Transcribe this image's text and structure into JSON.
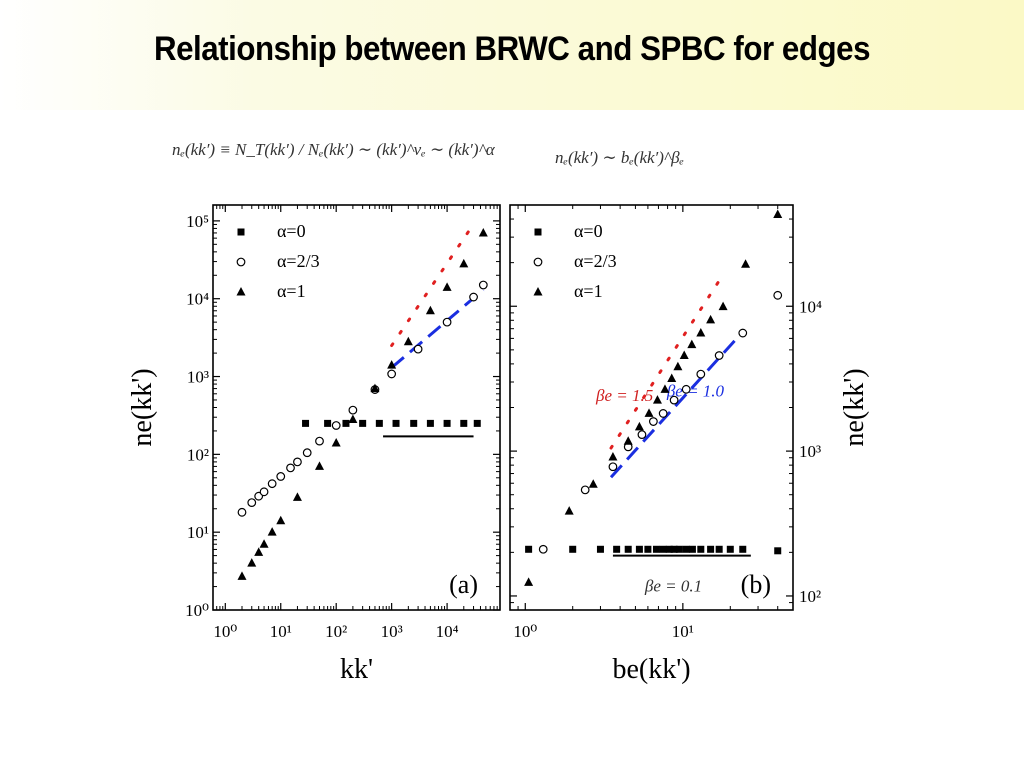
{
  "slide": {
    "title": "Relationship between BRWC and SPBC for edges",
    "formula_left": "nₑ(kk′) ≡ N_T(kk′) / Nₑ(kk′) ∼ (kk′)^νₑ ∼ (kk′)^α",
    "formula_right": "nₑ(kk′) ∼ bₑ(kk′)^βₑ"
  },
  "chart_data": [
    {
      "type": "scatter",
      "panel_label": "(a)",
      "xlabel": "kk'",
      "ylabel": "ne(kk')",
      "xscale": "log",
      "yscale": "log",
      "xlim": [
        0.6,
        90000
      ],
      "ylim": [
        1,
        160000
      ],
      "xticks": [
        1,
        10,
        100,
        1000,
        10000
      ],
      "xtick_labels": [
        "10⁰",
        "10¹",
        "10²",
        "10³",
        "10⁴"
      ],
      "yticks": [
        1,
        10,
        100,
        1000,
        10000,
        100000
      ],
      "ytick_labels": [
        "10⁰",
        "10¹",
        "10²",
        "10³",
        "10⁴",
        "10⁵"
      ],
      "legend": [
        "α=0",
        "α=2/3",
        "α=1"
      ],
      "legend_position": "top-left",
      "series": [
        {
          "name": "α=0",
          "marker": "square",
          "x": [
            28,
            70,
            150,
            300,
            600,
            1200,
            2500,
            5000,
            10000,
            20000,
            35000
          ],
          "y": [
            250,
            250,
            250,
            250,
            250,
            250,
            250,
            250,
            250,
            250,
            250
          ]
        },
        {
          "name": "α=2/3",
          "marker": "circle-open",
          "x": [
            2,
            3,
            4,
            5,
            7,
            10,
            15,
            20,
            30,
            50,
            100,
            200,
            500,
            1000,
            3000,
            10000,
            30000,
            45000
          ],
          "y": [
            18,
            24,
            29,
            33,
            42,
            52,
            67,
            80,
            105,
            148,
            235,
            370,
            680,
            1080,
            2250,
            5000,
            10500,
            15000
          ]
        },
        {
          "name": "α=1",
          "marker": "triangle",
          "x": [
            2,
            3,
            4,
            5,
            7,
            10,
            20,
            50,
            100,
            200,
            500,
            1000,
            2000,
            5000,
            10000,
            20000,
            45000
          ],
          "y": [
            2.7,
            4,
            5.5,
            7,
            10,
            14,
            28,
            70,
            140,
            280,
            700,
            1400,
            2800,
            7000,
            14000,
            28000,
            70000
          ]
        }
      ],
      "guides": [
        {
          "style": "red-dotted",
          "x": [
            1000,
            25000
          ],
          "y": [
            2500,
            75000
          ]
        },
        {
          "style": "blue-dashed",
          "x": [
            1000,
            45000
          ],
          "y": [
            1300,
            13000
          ]
        },
        {
          "style": "black-solid",
          "x": [
            700,
            30000
          ],
          "y": [
            170,
            170
          ]
        }
      ]
    },
    {
      "type": "scatter",
      "panel_label": "(b)",
      "xlabel": "be(kk')",
      "ylabel": "ne(kk')",
      "xscale": "log",
      "yscale": "log",
      "y_axis_side": "right",
      "xlim": [
        0.8,
        50
      ],
      "ylim": [
        80,
        50000
      ],
      "xticks": [
        1,
        10
      ],
      "xtick_labels": [
        "10⁰",
        "10¹"
      ],
      "yticks": [
        100,
        1000,
        10000
      ],
      "ytick_labels": [
        "10²",
        "10³",
        "10⁴"
      ],
      "legend": [
        "α=0",
        "α=2/3",
        "α=1"
      ],
      "legend_position": "top-left",
      "series": [
        {
          "name": "α=0",
          "marker": "square",
          "x": [
            1.05,
            2.0,
            3.0,
            3.8,
            4.5,
            5.3,
            6.0,
            6.8,
            7.5,
            8.2,
            8.8,
            9.5,
            10.5,
            11.5,
            13,
            15,
            17,
            20,
            24,
            40
          ],
          "y": [
            210,
            210,
            210,
            210,
            210,
            210,
            210,
            210,
            210,
            210,
            210,
            210,
            210,
            210,
            210,
            210,
            210,
            210,
            210,
            205
          ]
        },
        {
          "name": "α=2/3",
          "marker": "circle-open",
          "x": [
            1.3,
            2.4,
            3.6,
            4.5,
            5.5,
            6.5,
            7.5,
            8.8,
            10.5,
            13,
            17,
            24,
            40
          ],
          "y": [
            210,
            540,
            780,
            1070,
            1300,
            1600,
            1820,
            2250,
            2670,
            3400,
            4570,
            6530,
            11900
          ]
        },
        {
          "name": "α=1",
          "marker": "triangle",
          "x": [
            1.05,
            1.9,
            2.7,
            3.6,
            4.5,
            5.3,
            6.1,
            6.9,
            7.7,
            8.5,
            9.3,
            10.2,
            11.4,
            13,
            15,
            18,
            25,
            40
          ],
          "y": [
            124,
            385,
            590,
            910,
            1170,
            1470,
            1820,
            2250,
            2670,
            3170,
            3820,
            4570,
            5430,
            6530,
            8050,
            9950,
            19500,
            43000
          ]
        }
      ],
      "guides": [
        {
          "style": "red-dotted",
          "x": [
            3.5,
            17
          ],
          "y": [
            1050,
            15000
          ],
          "label": "βe = 1.5"
        },
        {
          "style": "blue-dashed",
          "x": [
            3.5,
            22
          ],
          "y": [
            660,
            6000
          ],
          "label": "βe = 1.0"
        },
        {
          "style": "black-solid",
          "x": [
            3.6,
            27
          ],
          "y": [
            190,
            190
          ],
          "label": "βe = 0.1"
        }
      ]
    }
  ]
}
